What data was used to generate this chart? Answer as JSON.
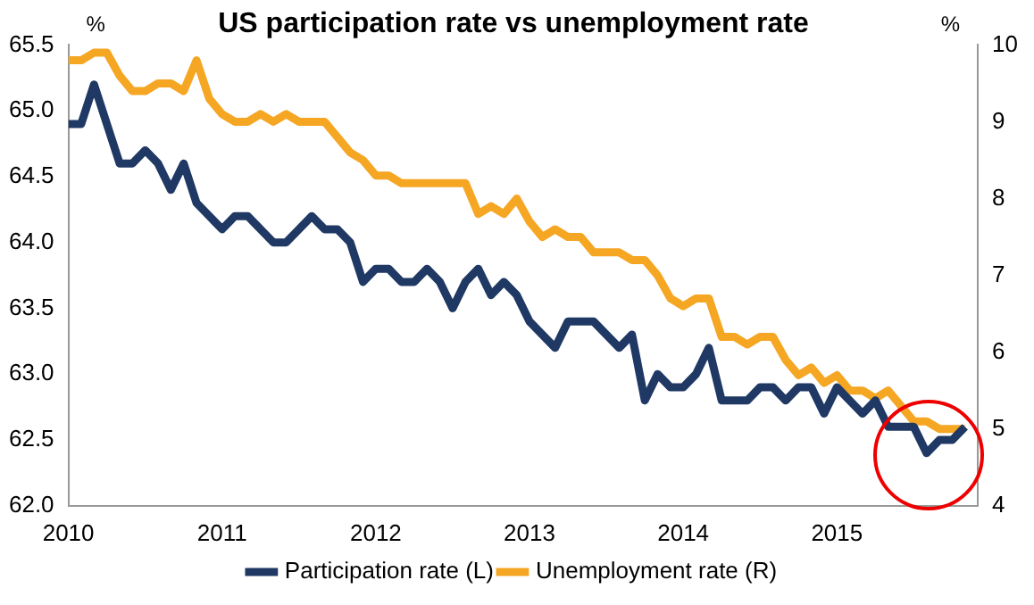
{
  "chart_data": {
    "type": "line",
    "title": "US participation rate vs unemployment rate",
    "ylabel": "%",
    "y2label": "%",
    "x": [
      "2010-01",
      "2010-02",
      "2010-03",
      "2010-04",
      "2010-05",
      "2010-06",
      "2010-07",
      "2010-08",
      "2010-09",
      "2010-10",
      "2010-11",
      "2010-12",
      "2011-01",
      "2011-02",
      "2011-03",
      "2011-04",
      "2011-05",
      "2011-06",
      "2011-07",
      "2011-08",
      "2011-09",
      "2011-10",
      "2011-11",
      "2011-12",
      "2012-01",
      "2012-02",
      "2012-03",
      "2012-04",
      "2012-05",
      "2012-06",
      "2012-07",
      "2012-08",
      "2012-09",
      "2012-10",
      "2012-11",
      "2012-12",
      "2013-01",
      "2013-02",
      "2013-03",
      "2013-04",
      "2013-05",
      "2013-06",
      "2013-07",
      "2013-08",
      "2013-09",
      "2013-10",
      "2013-11",
      "2013-12",
      "2014-01",
      "2014-02",
      "2014-03",
      "2014-04",
      "2014-05",
      "2014-06",
      "2014-07",
      "2014-08",
      "2014-09",
      "2014-10",
      "2014-11",
      "2014-12",
      "2015-01",
      "2015-02",
      "2015-03",
      "2015-04",
      "2015-05",
      "2015-06",
      "2015-07",
      "2015-08",
      "2015-09",
      "2015-10",
      "2015-11"
    ],
    "series": [
      {
        "name": "Participation rate (L)",
        "color": "#1f3864",
        "values": [
          64.9,
          64.9,
          65.2,
          64.9,
          64.6,
          64.6,
          64.7,
          64.6,
          64.4,
          64.6,
          64.3,
          64.2,
          64.1,
          64.2,
          64.2,
          64.1,
          64.0,
          64.0,
          64.1,
          64.2,
          64.1,
          64.1,
          64.0,
          63.7,
          63.8,
          63.8,
          63.7,
          63.7,
          63.8,
          63.7,
          63.5,
          63.7,
          63.8,
          63.6,
          63.7,
          63.6,
          63.4,
          63.3,
          63.2,
          63.4,
          63.4,
          63.4,
          63.3,
          63.2,
          63.3,
          62.8,
          63.0,
          62.9,
          62.9,
          63.0,
          63.2,
          62.8,
          62.8,
          62.8,
          62.9,
          62.9,
          62.8,
          62.9,
          62.9,
          62.7,
          62.9,
          62.8,
          62.7,
          62.8,
          62.6,
          62.6,
          62.6,
          62.4,
          62.5,
          62.5,
          62.6
        ]
      },
      {
        "name": "Unemployment rate (R)",
        "color": "#f5a623",
        "axis": "y2",
        "values": [
          9.8,
          9.8,
          9.9,
          9.9,
          9.6,
          9.4,
          9.4,
          9.5,
          9.5,
          9.4,
          9.8,
          9.3,
          9.1,
          9.0,
          9.0,
          9.1,
          9.0,
          9.1,
          9.0,
          9.0,
          9.0,
          8.8,
          8.6,
          8.5,
          8.3,
          8.3,
          8.2,
          8.2,
          8.2,
          8.2,
          8.2,
          8.2,
          7.8,
          7.9,
          7.8,
          8.0,
          7.7,
          7.5,
          7.6,
          7.5,
          7.5,
          7.3,
          7.3,
          7.3,
          7.2,
          7.2,
          7.0,
          6.7,
          6.6,
          6.7,
          6.7,
          6.2,
          6.2,
          6.1,
          6.2,
          6.2,
          5.9,
          5.7,
          5.8,
          5.6,
          5.7,
          5.5,
          5.5,
          5.4,
          5.5,
          5.3,
          5.1,
          5.1,
          5.0,
          5.0,
          5.0
        ]
      }
    ],
    "xlim": [
      "2010-01",
      "2015-12"
    ],
    "xticks": [
      "2010",
      "2011",
      "2012",
      "2013",
      "2014",
      "2015"
    ],
    "ylim": [
      62,
      65.5
    ],
    "yticks": [
      {
        "value": 62,
        "label": "62.0"
      },
      62.5,
      {
        "value": 63,
        "label": "63.0"
      },
      63.5,
      {
        "value": 64,
        "label": "64.0"
      },
      64.5,
      {
        "value": 65,
        "label": "65.0"
      },
      65.5
    ],
    "y2lim": [
      4,
      10
    ],
    "y2ticks": [
      4,
      5,
      6,
      7,
      8,
      9,
      10
    ],
    "legend": "bottom",
    "grid": false,
    "marker": "none",
    "line_style": "solid"
  }
}
